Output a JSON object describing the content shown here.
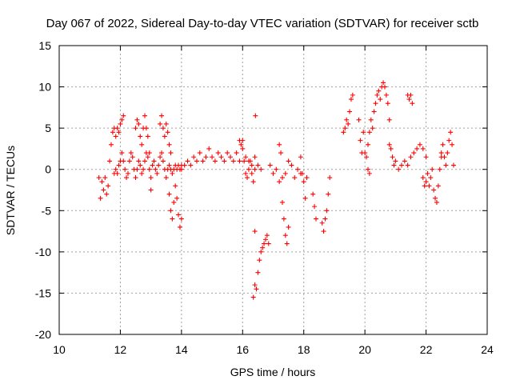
{
  "chart_data": {
    "type": "scatter",
    "title": "Day 067 of 2022, Sidereal Day-to-day VTEC variation (SDTVAR) for receiver sctb",
    "xlabel": "GPS time / hours",
    "ylabel": "SDTVAR / TECUs",
    "xlim": [
      10,
      24
    ],
    "ylim": [
      -20,
      15
    ],
    "xticks": [
      10,
      12,
      14,
      16,
      18,
      20,
      22,
      24
    ],
    "yticks": [
      -20,
      -15,
      -10,
      -5,
      0,
      5,
      10,
      15
    ],
    "xtick_labels": [
      "10",
      "12",
      "14",
      "16",
      "18",
      "20",
      "22",
      "24"
    ],
    "ytick_labels": [
      "-20",
      "-15",
      "-10",
      "-5",
      "0",
      "5",
      "10",
      "15"
    ],
    "grid": true,
    "marker": "+",
    "color": "#ff0000",
    "series": [
      {
        "name": "SDTVAR",
        "x": [
          11.3,
          11.35,
          11.4,
          11.45,
          11.5,
          11.55,
          11.6,
          11.65,
          11.7,
          11.75,
          11.8,
          11.85,
          11.9,
          11.95,
          12.0,
          12.05,
          12.1,
          11.8,
          11.85,
          11.9,
          11.95,
          12.0,
          12.05,
          12.1,
          12.15,
          12.2,
          12.25,
          12.3,
          12.35,
          12.4,
          12.45,
          12.5,
          12.55,
          12.6,
          12.65,
          12.7,
          12.75,
          12.8,
          12.85,
          12.9,
          12.95,
          13.0,
          13.05,
          13.1,
          13.15,
          13.2,
          13.25,
          13.3,
          13.35,
          13.4,
          13.45,
          13.5,
          13.55,
          13.6,
          13.65,
          13.7,
          13.75,
          13.8,
          13.85,
          13.9,
          13.95,
          14.0,
          12.5,
          12.55,
          12.6,
          12.65,
          12.7,
          12.75,
          12.8,
          12.85,
          12.9,
          12.95,
          13.0,
          13.3,
          13.35,
          13.4,
          13.45,
          13.5,
          13.55,
          13.6,
          13.65,
          13.6,
          13.65,
          13.7,
          13.75,
          13.8,
          13.85,
          13.9,
          13.95,
          14.0,
          14.0,
          14.1,
          14.2,
          14.3,
          14.4,
          14.5,
          14.6,
          14.7,
          14.8,
          14.9,
          15.0,
          15.1,
          15.2,
          15.3,
          15.4,
          15.5,
          15.6,
          15.7,
          15.8,
          15.9,
          16.0,
          16.1,
          16.2,
          16.3,
          16.4,
          16.5,
          16.6,
          15.9,
          15.95,
          16.0,
          16.05,
          16.1,
          16.15,
          16.2,
          16.25,
          16.3,
          16.35,
          16.4,
          16.35,
          16.4,
          16.45,
          16.5,
          16.55,
          16.6,
          16.65,
          16.7,
          16.75,
          16.8,
          16.85,
          16.4,
          16.42,
          16.9,
          17.0,
          17.1,
          17.2,
          17.3,
          17.4,
          17.5,
          17.6,
          17.7,
          17.8,
          17.9,
          17.2,
          17.25,
          17.3,
          17.35,
          17.4,
          17.45,
          17.5,
          17.9,
          17.95,
          18.0,
          18.05,
          18.1,
          18.3,
          18.35,
          18.4,
          18.6,
          18.65,
          18.7,
          18.75,
          18.8,
          18.85,
          19.3,
          19.35,
          19.4,
          19.45,
          19.5,
          19.55,
          19.6,
          19.8,
          19.85,
          19.9,
          19.95,
          20.0,
          20.05,
          20.1,
          20.15,
          20.1,
          20.15,
          20.2,
          20.25,
          20.3,
          20.35,
          20.4,
          20.45,
          20.5,
          20.55,
          20.6,
          20.65,
          20.7,
          20.75,
          20.8,
          20.8,
          20.85,
          20.9,
          20.95,
          21.0,
          21.1,
          21.2,
          21.3,
          21.4,
          21.5,
          21.6,
          21.7,
          21.8,
          21.9,
          22.0,
          21.4,
          21.45,
          21.5,
          21.55,
          21.9,
          21.95,
          22.0,
          22.05,
          22.1,
          22.15,
          22.2,
          22.25,
          22.3,
          22.35,
          22.4,
          22.45,
          22.5,
          22.5,
          22.55,
          22.6,
          22.65,
          22.7,
          22.75,
          22.8,
          22.85,
          22.9
        ],
        "y": [
          -1.0,
          -3.5,
          -1.5,
          -2.5,
          -1.0,
          -3.0,
          -2.0,
          1.0,
          3.0,
          4.5,
          5.0,
          4.0,
          5.0,
          4.5,
          5.5,
          6.0,
          6.5,
          -0.5,
          0.0,
          -0.5,
          0.5,
          1.0,
          2.0,
          1.0,
          0.0,
          -1.0,
          -0.5,
          1.0,
          2.0,
          1.5,
          0.0,
          -1.0,
          0.0,
          1.0,
          0.5,
          -0.5,
          0.0,
          1.0,
          2.0,
          1.5,
          0.0,
          -1.0,
          0.5,
          1.0,
          0.0,
          -0.5,
          0.5,
          1.5,
          2.0,
          1.0,
          0.0,
          -1.0,
          0.0,
          0.5,
          0.0,
          -0.5,
          0.0,
          0.5,
          0.0,
          0.5,
          0.0,
          0.5,
          5.0,
          6.0,
          5.5,
          4.0,
          3.0,
          5.0,
          6.5,
          5.0,
          4.0,
          2.0,
          -2.5,
          5.5,
          6.5,
          5.0,
          4.0,
          5.5,
          4.5,
          3.0,
          2.0,
          -3.0,
          -5.0,
          -6.0,
          -4.0,
          -2.0,
          -3.5,
          -5.5,
          -7.0,
          -6.0,
          0.0,
          0.5,
          1.0,
          0.5,
          1.5,
          1.0,
          2.0,
          1.0,
          1.5,
          2.5,
          1.5,
          1.0,
          2.0,
          1.5,
          1.0,
          2.0,
          1.5,
          1.0,
          2.0,
          1.0,
          3.5,
          1.5,
          1.0,
          0.5,
          1.5,
          0.5,
          0.0,
          3.5,
          3.0,
          2.5,
          1.0,
          -0.5,
          -1.0,
          0.0,
          1.0,
          -0.5,
          -1.5,
          0.0,
          -15.5,
          -14.0,
          -14.5,
          -12.5,
          -11.0,
          -10.0,
          -9.5,
          -9.0,
          -8.5,
          -8.0,
          -9.0,
          -7.5,
          6.5,
          0.5,
          -0.5,
          0.0,
          -1.5,
          -1.0,
          -0.5,
          1.0,
          0.5,
          -1.0,
          0.0,
          -0.5,
          3.0,
          2.0,
          -4.0,
          -6.0,
          -8.0,
          -9.0,
          -7.0,
          1.5,
          -0.5,
          -1.5,
          -3.5,
          -1.0,
          -3.0,
          -4.5,
          -6.0,
          -6.5,
          -7.5,
          -6.0,
          -5.0,
          -3.0,
          -1.0,
          4.5,
          5.0,
          6.0,
          5.5,
          7.0,
          8.5,
          9.0,
          6.0,
          3.5,
          2.0,
          4.5,
          2.0,
          1.5,
          0.0,
          -0.5,
          3.0,
          4.5,
          6.0,
          5.0,
          7.0,
          8.0,
          9.0,
          9.5,
          8.5,
          10.0,
          10.5,
          10.0,
          9.0,
          8.0,
          6.0,
          3.0,
          2.5,
          1.5,
          0.5,
          1.0,
          0.0,
          0.5,
          1.0,
          0.5,
          1.5,
          2.0,
          2.5,
          3.0,
          2.5,
          1.5,
          9.0,
          8.5,
          9.0,
          8.0,
          -1.0,
          -2.0,
          -1.5,
          -0.5,
          -2.0,
          -1.0,
          0.0,
          -2.5,
          -3.5,
          -4.0,
          -2.0,
          0.0,
          1.5,
          2.0,
          3.0,
          1.5,
          0.5,
          2.0,
          3.5,
          4.5,
          3.0,
          0.5
        ]
      }
    ]
  }
}
